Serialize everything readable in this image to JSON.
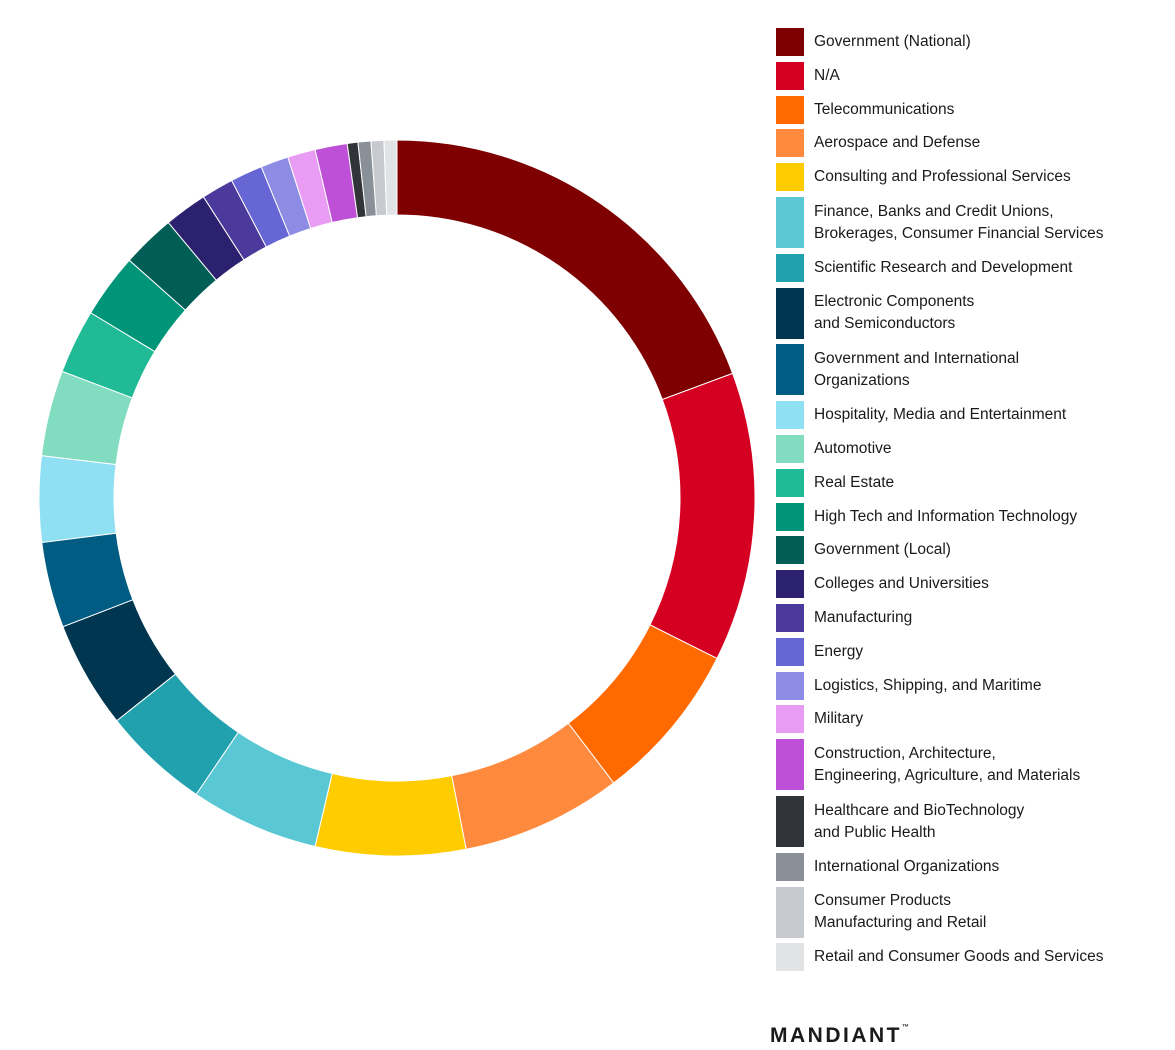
{
  "chart_data": {
    "type": "pie",
    "title": "",
    "legend_placement": "right",
    "categories": [
      "Government (National)",
      "N/A",
      "Telecommunications",
      "Aerospace and Defense",
      "Consulting and Professional Services",
      "Finance, Banks and Credit Unions,\nBrokerages, Consumer Financial Services",
      "Scientific Research and Development",
      "Electronic Components\nand Semiconductors",
      "Government and International\nOrganizations",
      "Hospitality, Media and Entertainment",
      "Automotive",
      "Real Estate",
      "High Tech and Information Technology",
      "Government (Local)",
      "Colleges and Universities",
      "Manufacturing",
      "Energy",
      "Logistics, Shipping, and Maritime",
      "Military",
      "Construction, Architecture,\nEngineering, Agriculture, and Materials",
      "Healthcare and BioTechnology\nand Public Health",
      "International Organizations",
      "Consumer Products\nManufacturing and Retail",
      "Retail and Consumer Goods and Services"
    ],
    "values": [
      20.0,
      13.5,
      7.5,
      7.5,
      7.0,
      6.0,
      5.0,
      5.0,
      4.0,
      4.0,
      4.0,
      3.0,
      3.0,
      2.5,
      2.0,
      1.5,
      1.5,
      1.3,
      1.3,
      1.5,
      0.5,
      0.6,
      0.6,
      0.6
    ],
    "colors": [
      "#7f0000",
      "#d50021",
      "#ff6a00",
      "#ff8a3d",
      "#ffcc00",
      "#5ac8d4",
      "#21a0ad",
      "#003650",
      "#005c82",
      "#8ee0f2",
      "#82dcc0",
      "#20bb96",
      "#009478",
      "#005e56",
      "#2b216e",
      "#4b3a9c",
      "#6666d4",
      "#8c8ce4",
      "#e89cf4",
      "#be50d8",
      "#31353a",
      "#8a9097",
      "#c7cbd0",
      "#e2e3e4"
    ]
  },
  "brand": {
    "logo_text": "MANDIANT",
    "trademark": "™"
  }
}
